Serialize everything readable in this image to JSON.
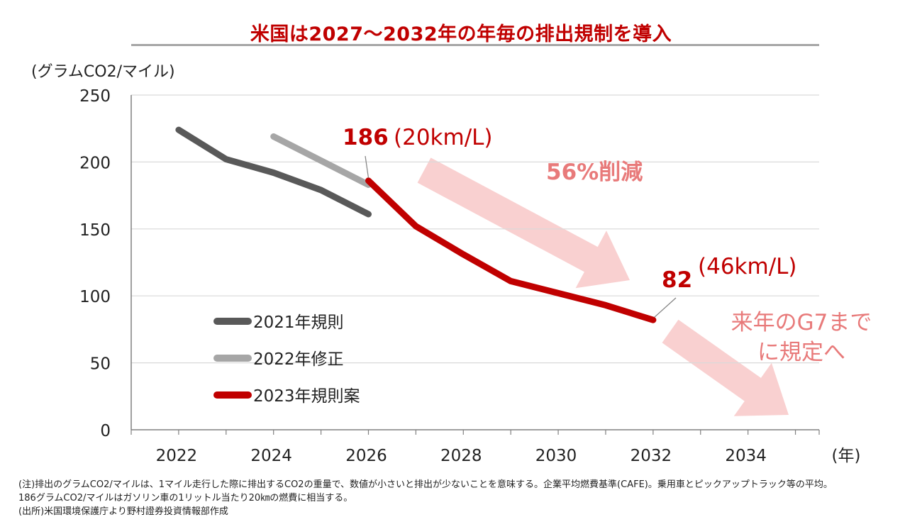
{
  "title": "米国は2027〜2032年の年毎の排出規制を導入",
  "chart_data": {
    "type": "line",
    "ylabel": "(グラムCO2/マイル)",
    "xlabel": "(年)",
    "xlim": [
      2021,
      2035.5
    ],
    "ylim": [
      0,
      250
    ],
    "x_ticks": [
      "2022",
      "2024",
      "2026",
      "2028",
      "2030",
      "2032",
      "2034"
    ],
    "y_ticks": [
      "0",
      "50",
      "100",
      "150",
      "200",
      "250"
    ],
    "grid": true,
    "legend_position": "lower-left",
    "series": [
      {
        "name": "2021年規則",
        "color": "#595959",
        "x": [
          2022,
          2023,
          2024,
          2025,
          2026
        ],
        "y": [
          224,
          202,
          192,
          179,
          161
        ]
      },
      {
        "name": "2022年修正",
        "color": "#a6a6a6",
        "x": [
          2024,
          2025,
          2026
        ],
        "y": [
          219,
          201,
          183
        ]
      },
      {
        "name": "2023年規則案",
        "color": "#c00000",
        "x": [
          2026,
          2027,
          2028,
          2029,
          2030,
          2031,
          2032
        ],
        "y": [
          186,
          152,
          131,
          111,
          102,
          93,
          82
        ]
      }
    ],
    "annotations": [
      {
        "value": "186",
        "note": "(20km/L)",
        "x": 2026,
        "y": 186
      },
      {
        "value": "82",
        "note": "(46km/L)",
        "x": 2032,
        "y": 82
      }
    ],
    "callouts": [
      {
        "text": "56%削減",
        "color": "#e87a7a"
      },
      {
        "lines": [
          "来年のG7まで",
          "に規定へ"
        ],
        "color": "#e87a7a"
      }
    ],
    "arrow_color": "#f8c8c8"
  },
  "notes": [
    "(注)排出のグラムCO2/マイルは、1マイル走行した際に排出するCO2の重量で、数値が小さいと排出が少ないことを意味する。企業平均燃費基準(CAFE)。乗用車とピックアップトラック等の平均。",
    "186グラムCO2/マイルはガソリン車の1リットル当たり20㎞の燃費に相当する。",
    "(出所)米国環境保護庁より野村證券投資情報部作成"
  ]
}
